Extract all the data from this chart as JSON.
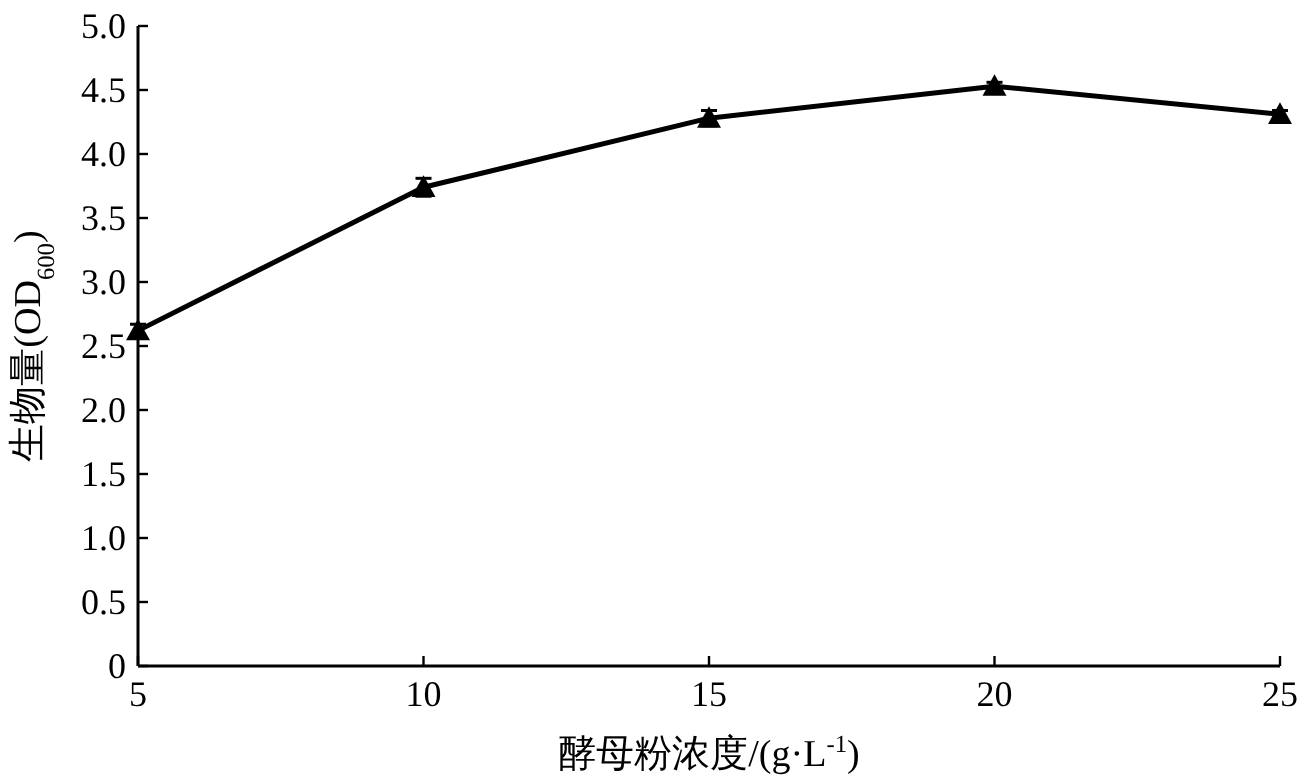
{
  "chart_data": {
    "type": "line",
    "xlabel": "酵母粉浓度/(g·L$^{-1}$)",
    "ylabel": "生物量(OD$_{600}$)",
    "x": [
      5,
      10,
      15,
      20,
      25
    ],
    "xlim": [
      5,
      25
    ],
    "xticks": [
      5,
      10,
      15,
      20,
      25
    ],
    "ylim": [
      0,
      5
    ],
    "yticks": [
      0,
      {
        "value": 0.5,
        "label": "0.5"
      },
      {
        "value": 1,
        "label": "1.0"
      },
      {
        "value": 1.5,
        "label": "1.5"
      },
      {
        "value": 2,
        "label": "2.0"
      },
      {
        "value": 2.5,
        "label": "2.5"
      },
      {
        "value": 3,
        "label": "3.0"
      },
      {
        "value": 3.5,
        "label": "3.5"
      },
      {
        "value": 4,
        "label": "4.0"
      },
      {
        "value": 4.5,
        "label": "4.5"
      },
      {
        "value": 5,
        "label": "5.0"
      }
    ],
    "marker": "triangle",
    "line_style": "solid",
    "series": [
      {
        "color": "#000000",
        "values": [
          2.62,
          3.74,
          4.28,
          4.53,
          4.31
        ],
        "errors": [
          0.05,
          0.07,
          0.06,
          0.03,
          0.03
        ]
      }
    ]
  }
}
